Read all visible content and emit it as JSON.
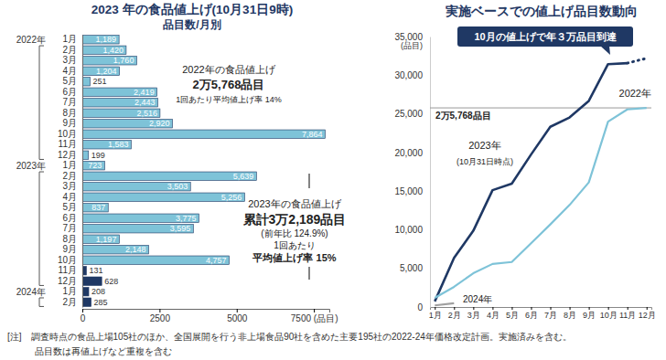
{
  "chart_data": [
    {
      "type": "bar",
      "orientation": "horizontal",
      "title": "2023 年の食品値上げ(10月31日9時)",
      "subtitle": "品目数/月別",
      "categories": [
        "1月",
        "2月",
        "3月",
        "4月",
        "5月",
        "6月",
        "7月",
        "8月",
        "9月",
        "10月",
        "11月",
        "12月",
        "1月",
        "2月",
        "3月",
        "4月",
        "5月",
        "6月",
        "7月",
        "8月",
        "9月",
        "10月",
        "11月",
        "12月",
        "1月",
        "2月"
      ],
      "groups": [
        {
          "label": "2022年",
          "count": 12
        },
        {
          "label": "2023年",
          "count": 12
        },
        {
          "label": "2024年",
          "count": 2
        }
      ],
      "values": [
        1189,
        1420,
        1760,
        1204,
        251,
        2419,
        2443,
        2516,
        2920,
        7864,
        1583,
        199,
        723,
        5639,
        3503,
        5256,
        837,
        3775,
        3595,
        1197,
        2148,
        4757,
        131,
        628,
        208,
        285
      ],
      "value_labels": [
        "1,189",
        "1,420",
        "1,760",
        "1,204",
        "251",
        "2,419",
        "2,443",
        "2,516",
        "2,920",
        "7,864",
        "1,583",
        "199",
        "723",
        "5,639",
        "3,503",
        "5,256",
        "837",
        "3,775",
        "3,595",
        "1,197",
        "2,148",
        "4,757",
        "131",
        "628",
        "208",
        "285"
      ],
      "colors": [
        "#7ec3d8",
        "#7ec3d8",
        "#7ec3d8",
        "#7ec3d8",
        "#7ec3d8",
        "#7ec3d8",
        "#7ec3d8",
        "#7ec3d8",
        "#7ec3d8",
        "#7ec3d8",
        "#7ec3d8",
        "#7ec3d8",
        "#7ec3d8",
        "#7ec3d8",
        "#7ec3d8",
        "#7ec3d8",
        "#7ec3d8",
        "#7ec3d8",
        "#7ec3d8",
        "#7ec3d8",
        "#7ec3d8",
        "#7ec3d8",
        "#1f3864",
        "#1f3864",
        "#1f3864",
        "#1f3864"
      ],
      "data_labels": true,
      "xlim": [
        0,
        8000
      ],
      "xticks": [
        0,
        2500,
        5000,
        {
          "value": 7500,
          "label": "7500 (品目)"
        }
      ],
      "annotations": [
        "2022年の食品値上げ",
        "2万5,768品目",
        "1回あたり平均値上げ率 14%",
        "2023年の食品値上げ",
        "累計3万2,189品目",
        "(前年比 124.9%)",
        "1回あたり",
        "平均値上げ率 15%"
      ]
    },
    {
      "type": "line",
      "title": "実施ベースでの値上げ品目数動向",
      "categories": [
        "1月",
        "2月",
        "3月",
        "4月",
        "5月",
        "6月",
        "7月",
        "8月",
        "9月",
        "10月",
        "11月",
        "12月"
      ],
      "series": [
        {
          "name": "2023年",
          "color": "#1f3864",
          "values": [
            723,
            6362,
            9865,
            15121,
            15958,
            19733,
            23328,
            24525,
            26673,
            31430,
            31561,
            null
          ]
        },
        {
          "color": "#1f3864",
          "line_style": "dotted",
          "values": [
            null,
            null,
            null,
            null,
            null,
            null,
            null,
            null,
            null,
            null,
            31561,
            32189
          ]
        },
        {
          "name": "2022年",
          "color": "#7ec3d8",
          "values": [
            1189,
            2609,
            4369,
            5573,
            5824,
            8243,
            10686,
            13202,
            16122,
            23986,
            25569,
            25768
          ]
        },
        {
          "name": "2024年",
          "color": "#a0a0a0",
          "values": [
            208,
            493,
            null,
            null,
            null,
            null,
            null,
            null,
            null,
            null,
            null,
            null
          ]
        }
      ],
      "ylim": [
        0,
        35000
      ],
      "yticks": [
        0,
        {
          "value": 5000,
          "label": "5,000"
        },
        {
          "value": 10000,
          "label": "10,000"
        },
        {
          "value": 15000,
          "label": "15,000"
        },
        {
          "value": 20000,
          "label": "20,000"
        },
        {
          "value": 25000,
          "label": "25,000"
        },
        {
          "value": 30000,
          "label": "30,000"
        },
        {
          "value": 35000,
          "label": "35,000"
        }
      ],
      "y_label": "(品目)",
      "reference_lines": [
        {
          "value": 25768,
          "label": "2万5,768品目"
        }
      ],
      "annotations": [
        "10月の値上げで年３万品目到達",
        "(10月31日時点)"
      ]
    }
  ],
  "notes": [
    "[注]　調査時点の食品上場105社のほか、全国展開を行う非上場食品90社を含めた主要195社の2022-24年価格改定計画。実施済みを含む。",
    "品目数は再値上げなど重複を含む"
  ]
}
